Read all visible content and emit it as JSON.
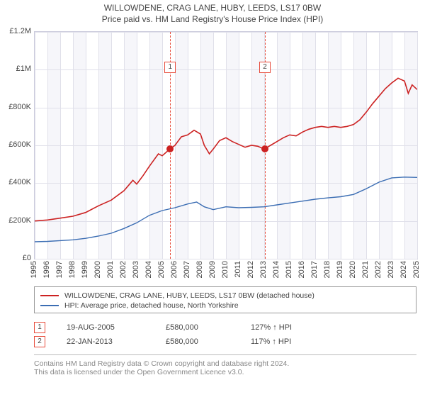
{
  "title": "WILLOWDENE, CRAG LANE, HUBY, LEEDS, LS17 0BW",
  "subtitle": "Price paid vs. HM Land Registry's House Price Index (HPI)",
  "chart": {
    "type": "line",
    "background_color": "#ffffff",
    "alt_band_color": "#f6f6fa",
    "grid_color": "#e0e0ea",
    "border_color": "#ccccdd",
    "ylim": [
      0,
      1200000
    ],
    "ytick_step": 200000,
    "ytick_labels": [
      "£0",
      "£200K",
      "£400K",
      "£600K",
      "£800K",
      "£1M",
      "£1.2M"
    ],
    "x_start_year": 1995,
    "x_end_year": 2025,
    "xtick_years": [
      1995,
      1996,
      1997,
      1998,
      1999,
      2000,
      2001,
      2002,
      2003,
      2004,
      2005,
      2006,
      2007,
      2008,
      2009,
      2010,
      2011,
      2012,
      2013,
      2014,
      2015,
      2016,
      2017,
      2018,
      2019,
      2020,
      2021,
      2022,
      2023,
      2024,
      2025
    ],
    "series": [
      {
        "name": "property",
        "label": "WILLOWDENE, CRAG LANE, HUBY, LEEDS, LS17 0BW (detached house)",
        "color": "#cc2222",
        "line_width": 1.6,
        "data": [
          [
            1995.0,
            200000
          ],
          [
            1996.0,
            205000
          ],
          [
            1997.0,
            215000
          ],
          [
            1998.0,
            225000
          ],
          [
            1999.0,
            245000
          ],
          [
            2000.0,
            280000
          ],
          [
            2001.0,
            310000
          ],
          [
            2002.0,
            360000
          ],
          [
            2002.7,
            415000
          ],
          [
            2003.0,
            395000
          ],
          [
            2003.5,
            440000
          ],
          [
            2004.0,
            490000
          ],
          [
            2004.7,
            555000
          ],
          [
            2005.0,
            545000
          ],
          [
            2005.6,
            580000
          ],
          [
            2006.0,
            600000
          ],
          [
            2006.5,
            645000
          ],
          [
            2007.0,
            655000
          ],
          [
            2007.5,
            680000
          ],
          [
            2008.0,
            660000
          ],
          [
            2008.3,
            600000
          ],
          [
            2008.7,
            555000
          ],
          [
            2009.0,
            580000
          ],
          [
            2009.5,
            625000
          ],
          [
            2010.0,
            640000
          ],
          [
            2010.5,
            620000
          ],
          [
            2011.0,
            605000
          ],
          [
            2011.5,
            590000
          ],
          [
            2012.0,
            600000
          ],
          [
            2012.5,
            595000
          ],
          [
            2013.0,
            580000
          ],
          [
            2013.5,
            600000
          ],
          [
            2014.0,
            620000
          ],
          [
            2014.5,
            640000
          ],
          [
            2015.0,
            655000
          ],
          [
            2015.5,
            650000
          ],
          [
            2016.0,
            670000
          ],
          [
            2016.5,
            685000
          ],
          [
            2017.0,
            695000
          ],
          [
            2017.5,
            700000
          ],
          [
            2018.0,
            695000
          ],
          [
            2018.5,
            700000
          ],
          [
            2019.0,
            695000
          ],
          [
            2019.5,
            700000
          ],
          [
            2020.0,
            710000
          ],
          [
            2020.5,
            735000
          ],
          [
            2021.0,
            775000
          ],
          [
            2021.5,
            820000
          ],
          [
            2022.0,
            860000
          ],
          [
            2022.5,
            900000
          ],
          [
            2023.0,
            930000
          ],
          [
            2023.5,
            955000
          ],
          [
            2024.0,
            940000
          ],
          [
            2024.3,
            875000
          ],
          [
            2024.6,
            920000
          ],
          [
            2025.0,
            895000
          ]
        ]
      },
      {
        "name": "hpi",
        "label": "HPI: Average price, detached house, North Yorkshire",
        "color": "#3b6db3",
        "line_width": 1.4,
        "data": [
          [
            1995.0,
            90000
          ],
          [
            1996.0,
            92000
          ],
          [
            1997.0,
            96000
          ],
          [
            1998.0,
            100000
          ],
          [
            1999.0,
            108000
          ],
          [
            2000.0,
            120000
          ],
          [
            2001.0,
            135000
          ],
          [
            2002.0,
            160000
          ],
          [
            2003.0,
            190000
          ],
          [
            2004.0,
            230000
          ],
          [
            2005.0,
            255000
          ],
          [
            2006.0,
            270000
          ],
          [
            2007.0,
            290000
          ],
          [
            2007.7,
            300000
          ],
          [
            2008.3,
            275000
          ],
          [
            2009.0,
            260000
          ],
          [
            2010.0,
            275000
          ],
          [
            2011.0,
            270000
          ],
          [
            2012.0,
            272000
          ],
          [
            2013.0,
            275000
          ],
          [
            2014.0,
            285000
          ],
          [
            2015.0,
            295000
          ],
          [
            2016.0,
            305000
          ],
          [
            2017.0,
            315000
          ],
          [
            2018.0,
            322000
          ],
          [
            2019.0,
            328000
          ],
          [
            2020.0,
            340000
          ],
          [
            2021.0,
            370000
          ],
          [
            2022.0,
            405000
          ],
          [
            2023.0,
            428000
          ],
          [
            2024.0,
            432000
          ],
          [
            2025.0,
            430000
          ]
        ]
      }
    ],
    "events": [
      {
        "box_label": "1",
        "year": 2005.63,
        "value": 580000,
        "marker_color": "#cc2222"
      },
      {
        "box_label": "2",
        "year": 2013.06,
        "value": 580000,
        "marker_color": "#cc2222"
      }
    ],
    "event_line_color": "#e74c3c",
    "event_box_border": "#e74c3c"
  },
  "legend": {
    "items": [
      {
        "color": "#cc2222",
        "label": "WILLOWDENE, CRAG LANE, HUBY, LEEDS, LS17 0BW (detached house)"
      },
      {
        "color": "#3b6db3",
        "label": "HPI: Average price, detached house, North Yorkshire"
      }
    ]
  },
  "sales_rows": [
    {
      "box": "1",
      "date": "19-AUG-2005",
      "price": "£580,000",
      "pct": "127% ↑ HPI"
    },
    {
      "box": "2",
      "date": "22-JAN-2013",
      "price": "£580,000",
      "pct": "117% ↑ HPI"
    }
  ],
  "footer_line1": "Contains HM Land Registry data © Crown copyright and database right 2024.",
  "footer_line2": "This data is licensed under the Open Government Licence v3.0."
}
